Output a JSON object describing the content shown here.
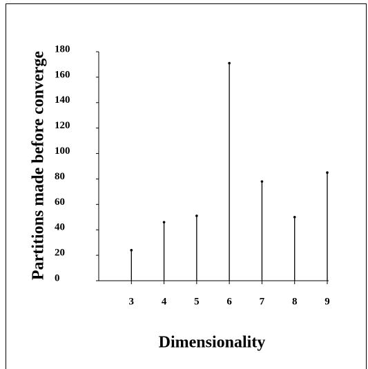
{
  "chart_data": {
    "type": "stem",
    "xlabel": "Dimensionality",
    "ylabel": "Partitions made before converge",
    "x": [
      3,
      4,
      5,
      6,
      7,
      8,
      9
    ],
    "values": [
      24,
      46,
      51,
      171,
      78,
      50,
      85
    ],
    "color": "#000000",
    "xlim": [
      2,
      9
    ],
    "xticks": [
      3,
      4,
      5,
      6,
      7,
      8,
      9
    ],
    "ylim": [
      0,
      180
    ],
    "yticks": [
      0,
      20,
      40,
      60,
      80,
      100,
      120,
      140,
      160,
      180
    ]
  }
}
